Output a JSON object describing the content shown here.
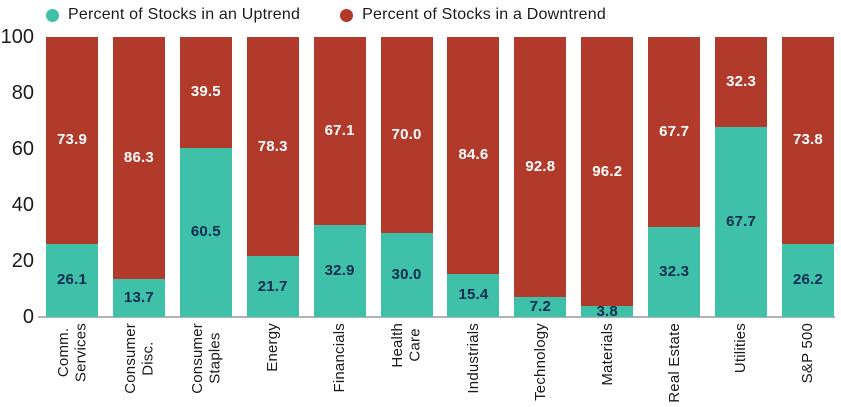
{
  "colors": {
    "uptrend": "#3ec1a8",
    "downtrend": "#b23a2a",
    "uptrend_label_text": "#0e2c4e",
    "downtrend_label_text": "#ffffff",
    "axis_line": "#b3b3b3",
    "text": "#1b1b1b",
    "background": "#ffffff"
  },
  "chart_data": {
    "type": "bar",
    "stacked": true,
    "title": "",
    "xlabel": "",
    "ylabel": "",
    "ylim": [
      0,
      100
    ],
    "yticks": [
      0,
      20,
      40,
      60,
      80,
      100
    ],
    "grid": false,
    "legend_position": "top",
    "categories": [
      "Comm.\nServices",
      "Consumer\nDisc.",
      "Consumer\nStaples",
      "Energy",
      "Financials",
      "Health\nCare",
      "Industrials",
      "Technology",
      "Materials",
      "Real Estate",
      "Utilities",
      "S&P 500"
    ],
    "series": [
      {
        "name": "Percent of Stocks in an Uptrend",
        "color": "#3ec1a8",
        "values": [
          26.1,
          13.7,
          60.5,
          21.7,
          32.9,
          30.0,
          15.4,
          7.2,
          3.8,
          32.3,
          67.7,
          26.2
        ]
      },
      {
        "name": "Percent of Stocks in a Downtrend",
        "color": "#b23a2a",
        "values": [
          73.9,
          86.3,
          39.5,
          78.3,
          67.1,
          70.0,
          84.6,
          92.8,
          96.2,
          67.7,
          32.3,
          73.8
        ]
      }
    ]
  }
}
